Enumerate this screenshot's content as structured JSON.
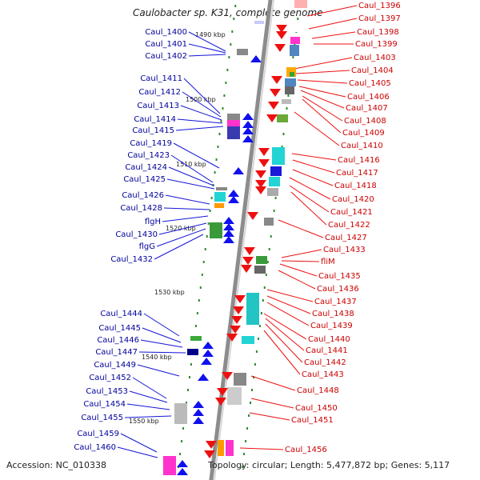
{
  "title": "Caulobacter sp. K31, complete genome",
  "accession": "Accession: NC_010338",
  "summary": "Topology: circular; Length: 5,477,872 bp; Genes: 5,117",
  "colors": {
    "left_label": "#00009c",
    "right_label": "#cc0000",
    "backbone": "#8c8c8c",
    "tick": "#2e8b2e"
  },
  "kbp_markers": [
    "1490 kbp",
    "1500 kbp",
    "1510 kbp",
    "1520 kbp",
    "1530 kbp",
    "1540 kbp",
    "1550 kbp"
  ],
  "left_genes": [
    "Caul_1400",
    "Caul_1401",
    "Caul_1402",
    "Caul_1411",
    "Caul_1412",
    "Caul_1413",
    "Caul_1414",
    "Caul_1415",
    "Caul_1419",
    "Caul_1423",
    "Caul_1424",
    "Caul_1425",
    "Caul_1426",
    "Caul_1428",
    "flgH",
    "Caul_1430",
    "flgG",
    "Caul_1432",
    "Caul_1444",
    "Caul_1445",
    "Caul_1446",
    "Caul_1447",
    "Caul_1449",
    "Caul_1452",
    "Caul_1453",
    "Caul_1454",
    "Caul_1455",
    "Caul_1459",
    "Caul_1460"
  ],
  "right_genes": [
    "Caul_1396",
    "Caul_1397",
    "Caul_1398",
    "Caul_1399",
    "Caul_1403",
    "Caul_1404",
    "Caul_1405",
    "Caul_1406",
    "Caul_1407",
    "Caul_1408",
    "Caul_1409",
    "Caul_1410",
    "Caul_1416",
    "Caul_1417",
    "Caul_1418",
    "Caul_1420",
    "Caul_1421",
    "Caul_1422",
    "Caul_1427",
    "Caul_1433",
    "fliM",
    "Caul_1435",
    "Caul_1436",
    "Caul_1437",
    "Caul_1438",
    "Caul_1439",
    "Caul_1440",
    "Caul_1441",
    "Caul_1442",
    "Caul_1443",
    "Caul_1448",
    "Caul_1450",
    "Caul_1451",
    "Caul_1456"
  ]
}
